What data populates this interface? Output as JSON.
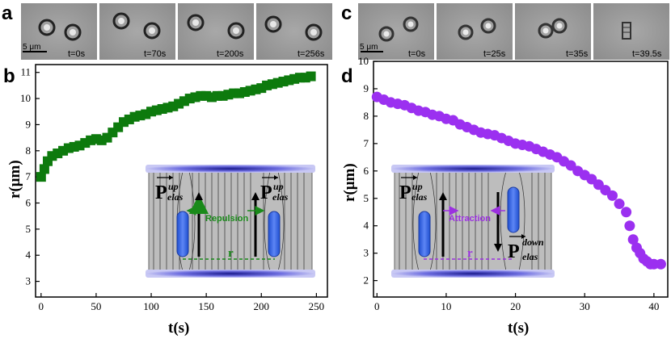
{
  "panels": {
    "a": {
      "label": "a",
      "scale": "5 μm",
      "frames": [
        "t=0s",
        "t=70s",
        "t=200s",
        "t=256s"
      ]
    },
    "c": {
      "label": "c",
      "scale": "5 μm",
      "frames": [
        "t=0s",
        "t=25s",
        "t=35s",
        "t=39.5s"
      ]
    },
    "b": {
      "label": "b"
    },
    "d": {
      "label": "d"
    }
  },
  "inset_b": {
    "interaction": "Repulsion",
    "p_main": "P",
    "p_sup1": "up",
    "p_sub1": "elas",
    "p_sup2": "up",
    "p_sub2": "elas",
    "distance": "r",
    "color": "#1a8a1a"
  },
  "inset_d": {
    "interaction": "Attraction",
    "p_main": "P",
    "p_sup1": "up",
    "p_sub1": "elas",
    "p_sup2": "down",
    "p_sub2": "elas",
    "distance": "r",
    "color": "#9b30e0"
  },
  "chart_data": [
    {
      "type": "scatter",
      "panel": "b",
      "xlabel": "t(s)",
      "ylabel": "r(μm)",
      "xlim": [
        -5,
        260
      ],
      "ylim": [
        2.4,
        11.3
      ],
      "xticks": [
        0,
        50,
        100,
        150,
        200,
        250
      ],
      "yticks": [
        3,
        4,
        5,
        6,
        7,
        8,
        9,
        10,
        11
      ],
      "color": "#0d7a0d",
      "marker": "square",
      "series": [
        {
          "x": [
            0,
            3,
            6,
            10,
            15,
            20,
            25,
            30,
            35,
            40,
            45,
            50,
            55,
            60,
            65,
            70,
            75,
            80,
            85,
            90,
            95,
            100,
            105,
            110,
            115,
            120,
            125,
            130,
            135,
            140,
            145,
            150,
            155,
            160,
            165,
            170,
            175,
            180,
            185,
            190,
            195,
            200,
            205,
            210,
            215,
            220,
            225,
            230,
            235,
            240,
            245
          ],
          "y": [
            7.0,
            7.3,
            7.6,
            7.8,
            7.9,
            8.0,
            8.1,
            8.15,
            8.2,
            8.3,
            8.4,
            8.45,
            8.4,
            8.5,
            8.7,
            8.9,
            9.1,
            9.2,
            9.3,
            9.35,
            9.4,
            9.5,
            9.55,
            9.6,
            9.65,
            9.7,
            9.8,
            9.9,
            10.0,
            10.05,
            10.1,
            10.1,
            10.05,
            10.1,
            10.1,
            10.15,
            10.2,
            10.2,
            10.25,
            10.3,
            10.35,
            10.4,
            10.5,
            10.55,
            10.6,
            10.65,
            10.7,
            10.75,
            10.8,
            10.8,
            10.85
          ]
        }
      ]
    },
    {
      "type": "scatter",
      "panel": "d",
      "xlabel": "t(s)",
      "ylabel": "r(μm)",
      "xlim": [
        -0.5,
        42
      ],
      "ylim": [
        1.4,
        10
      ],
      "xticks": [
        0,
        10,
        20,
        30,
        40
      ],
      "yticks": [
        2,
        3,
        4,
        5,
        6,
        7,
        8,
        9,
        10
      ],
      "color": "#9b30f0",
      "marker": "circle",
      "series": [
        {
          "x": [
            0,
            1,
            2,
            3,
            4,
            5,
            6,
            7,
            8,
            9,
            10,
            11,
            12,
            13,
            14,
            15,
            16,
            17,
            18,
            19,
            20,
            21,
            22,
            23,
            24,
            25,
            26,
            27,
            28,
            29,
            30,
            31,
            32,
            33,
            34,
            35,
            36,
            36.5,
            37,
            37.5,
            38,
            38.5,
            39,
            39.5,
            40,
            41
          ],
          "y": [
            8.7,
            8.6,
            8.5,
            8.45,
            8.4,
            8.3,
            8.2,
            8.15,
            8.05,
            8.0,
            7.9,
            7.85,
            7.7,
            7.6,
            7.5,
            7.4,
            7.35,
            7.3,
            7.2,
            7.1,
            7.0,
            6.95,
            6.9,
            6.8,
            6.7,
            6.6,
            6.5,
            6.35,
            6.2,
            6.0,
            5.85,
            5.7,
            5.5,
            5.3,
            5.1,
            4.8,
            4.5,
            4.0,
            3.5,
            3.2,
            3.0,
            2.8,
            2.7,
            2.6,
            2.6,
            2.6
          ]
        }
      ]
    }
  ]
}
